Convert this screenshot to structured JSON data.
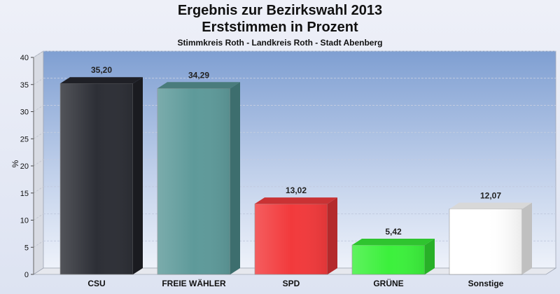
{
  "chart_data": {
    "type": "bar",
    "title": "Ergebnis zur Bezirkswahl 2013",
    "subtitle": "Erststimmen in Prozent",
    "caption": "Stimmkreis Roth - Landkreis Roth - Stadt Abenberg",
    "ylabel": "%",
    "ylim": [
      0,
      40
    ],
    "yticks": [
      0,
      5,
      10,
      15,
      20,
      25,
      30,
      35,
      40
    ],
    "grid": true,
    "categories": [
      "CSU",
      "FREIE WÄHLER",
      "SPD",
      "GRÜNE",
      "Sonstige"
    ],
    "values": [
      35.2,
      34.29,
      13.02,
      5.42,
      12.07
    ],
    "value_labels": [
      "35,20",
      "34,29",
      "13,02",
      "5,42",
      "12,07"
    ],
    "colors": [
      "#2d2f36",
      "#5e9a9a",
      "#f23a3c",
      "#3cf03c",
      "#ffffff"
    ],
    "side_colors": [
      "#1a1b20",
      "#3d6e6e",
      "#b42a2c",
      "#28b028",
      "#c0c0c0"
    ],
    "top_colors": [
      "#1f2026",
      "#4a7c7c",
      "#c93234",
      "#2fc42f",
      "#d8d8d8"
    ]
  }
}
